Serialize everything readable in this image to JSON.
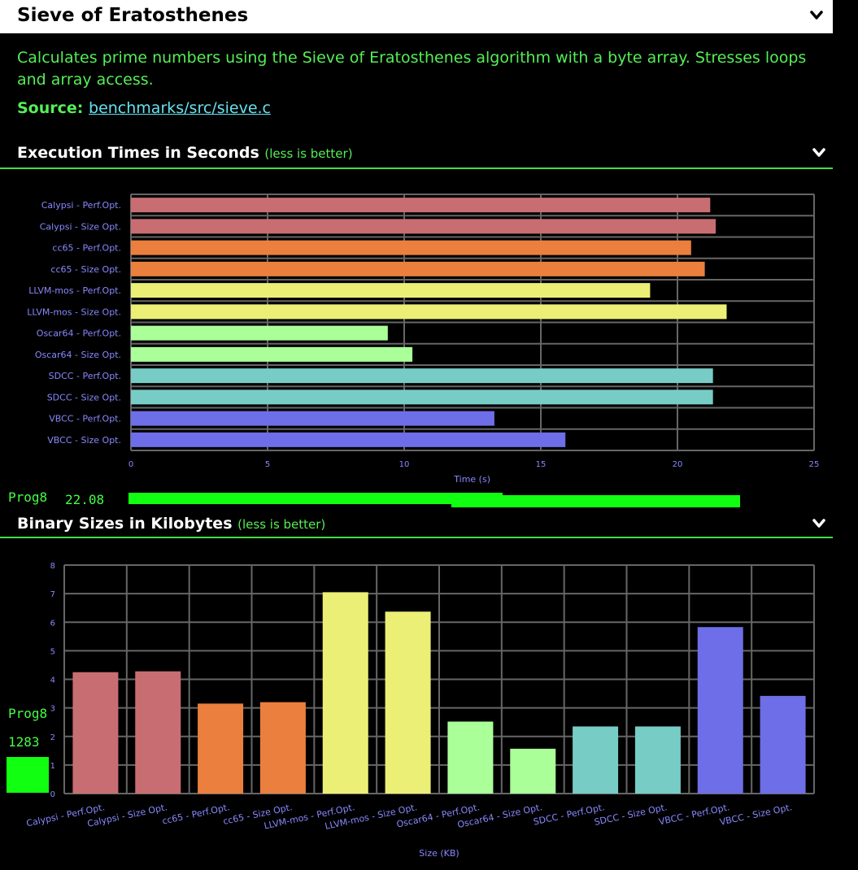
{
  "header": {
    "title": "Sieve of Eratosthenes"
  },
  "description": "Calculates prime numbers using the Sieve of Eratosthenes algorithm with a byte array. Stresses loops and array access.",
  "source": {
    "label": "Source:",
    "link_text": "benchmarks/src/sieve.c"
  },
  "sections": {
    "exec": {
      "title": "Execution Times in Seconds",
      "hint": "(less is better)"
    },
    "size": {
      "title": "Binary Sizes in Kilobytes",
      "hint": "(less is better)"
    }
  },
  "overlays": {
    "exec_prog": {
      "name": "Prog8",
      "value": "22.08"
    },
    "size_prog": {
      "name": "Prog8",
      "value": "1283"
    }
  },
  "colors": {
    "Calypsi": "#c86e72",
    "cc65": "#eb7f3d",
    "LLVM-mos": "#ecef75",
    "Oscar64": "#aaff99",
    "SDCC": "#77ccc6",
    "VBCC": "#6e6ee8",
    "axis_text": "#8888ff",
    "grid": "#666666",
    "prog": "#11ff11"
  },
  "chart_data": [
    {
      "type": "bar",
      "orientation": "horizontal",
      "categories": [
        "Calypsi - Perf.Opt.",
        "Calypsi - Size Opt.",
        "cc65 - Perf.Opt.",
        "cc65 - Size Opt.",
        "LLVM-mos - Perf.Opt.",
        "LLVM-mos - Size Opt.",
        "Oscar64 - Perf.Opt.",
        "Oscar64 - Size Opt.",
        "SDCC - Perf.Opt.",
        "SDCC - Size Opt.",
        "VBCC - Perf.Opt.",
        "VBCC - Size Opt."
      ],
      "groups": [
        "Calypsi",
        "Calypsi",
        "cc65",
        "cc65",
        "LLVM-mos",
        "LLVM-mos",
        "Oscar64",
        "Oscar64",
        "SDCC",
        "SDCC",
        "VBCC",
        "VBCC"
      ],
      "values": [
        21.2,
        21.4,
        20.5,
        21.0,
        19.0,
        21.8,
        9.4,
        10.3,
        21.3,
        21.3,
        13.3,
        15.9
      ],
      "xlabel": "Time (s)",
      "xlim": [
        0,
        25
      ],
      "xticks": [
        0,
        5,
        10,
        15,
        20,
        25
      ],
      "grid": true
    },
    {
      "type": "bar",
      "orientation": "vertical",
      "categories": [
        "Calypsi - Perf.Opt.",
        "Calypsi - Size Opt.",
        "cc65 - Perf.Opt.",
        "cc65 - Size Opt.",
        "LLVM-mos - Perf.Opt.",
        "LLVM-mos - Size Opt.",
        "Oscar64 - Perf.Opt.",
        "Oscar64 - Size Opt.",
        "SDCC - Perf.Opt.",
        "SDCC - Size Opt.",
        "VBCC - Perf.Opt.",
        "VBCC - Size Opt."
      ],
      "groups": [
        "Calypsi",
        "Calypsi",
        "cc65",
        "cc65",
        "LLVM-mos",
        "LLVM-mos",
        "Oscar64",
        "Oscar64",
        "SDCC",
        "SDCC",
        "VBCC",
        "VBCC"
      ],
      "values": [
        4.25,
        4.28,
        3.15,
        3.2,
        7.05,
        6.37,
        2.52,
        1.57,
        2.35,
        2.35,
        5.83,
        3.42
      ],
      "xlabel": "Size (KB)",
      "ylim": [
        0,
        8
      ],
      "yticks": [
        0,
        1,
        2,
        3,
        4,
        5,
        6,
        7,
        8
      ],
      "grid": true
    }
  ]
}
